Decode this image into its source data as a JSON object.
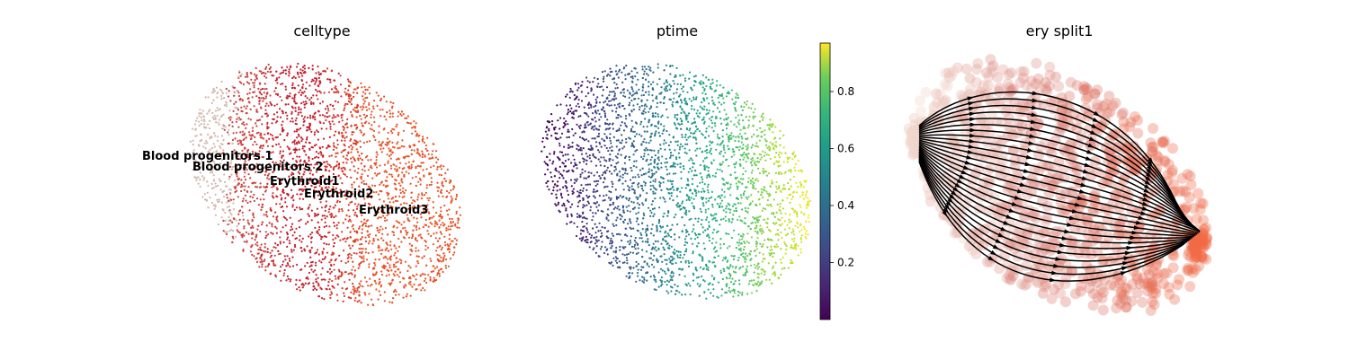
{
  "chart_data": [
    {
      "type": "scatter",
      "title": "celltype",
      "xlabel": "",
      "ylabel": "",
      "legend": "on data",
      "categories": [
        {
          "name": "Blood progenitors 1",
          "color": "#d2b8ad"
        },
        {
          "name": "Blood progenitors 2",
          "color": "#c9423f"
        },
        {
          "name": "Erythroid1",
          "color": "#c3202d"
        },
        {
          "name": "Erythroid2",
          "color": "#d83a28"
        },
        {
          "name": "Erythroid3",
          "color": "#e65428"
        }
      ]
    },
    {
      "type": "scatter",
      "title": "ptime",
      "xlabel": "",
      "ylabel": "",
      "colormap": "viridis",
      "colorbar": {
        "ticks": [
          "0.2",
          "0.4",
          "0.6",
          "0.8"
        ],
        "tick_values": [
          0.2,
          0.4,
          0.6,
          0.8
        ],
        "range": [
          0.0,
          0.97
        ]
      }
    },
    {
      "type": "scatter",
      "title": "ery split1",
      "xlabel": "",
      "ylabel": "",
      "overlay": "velocity streamlines",
      "colors": {
        "low": "#f0d6cc",
        "mid": "#d97a70",
        "high": "#f26a45",
        "stream": "#000000"
      }
    }
  ]
}
